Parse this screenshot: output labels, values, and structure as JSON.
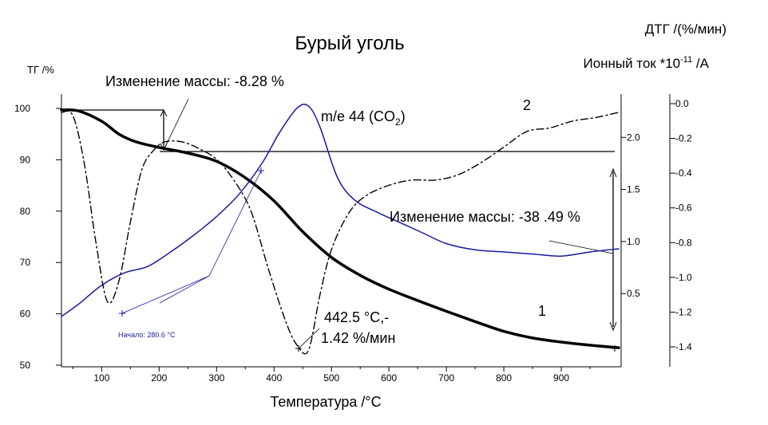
{
  "chart_data": {
    "type": "line",
    "title": "Бурый уголь",
    "xlabel": "Температура /°C",
    "xlim": [
      30,
      1000
    ],
    "x_ticks": [
      "100",
      "200",
      "300",
      "400",
      "500",
      "600",
      "700",
      "800",
      "900"
    ],
    "axes": {
      "tg": {
        "label": "ТГ /%",
        "ylim": [
          50,
          100
        ],
        "ticks": [
          "100",
          "90",
          "80",
          "70",
          "60",
          "50"
        ]
      },
      "ion": {
        "label": "Ионный ток *10",
        "label_sup": "-11",
        "label_tail": " /A",
        "ticks": [
          "2.0",
          "1.5",
          "1.0",
          "0.5"
        ]
      },
      "dtg": {
        "label": "ДТГ /(%/мин)",
        "ticks": [
          "0.0",
          "-0.2",
          "-0.4",
          "-0.6",
          "-0.8",
          "-1.0",
          "-1.2",
          "-1.4"
        ]
      }
    },
    "series": [
      {
        "id": "tg",
        "axis": "tg",
        "color": "#000000",
        "style": "solid-thick",
        "x": [
          30,
          60,
          100,
          130,
          160,
          200,
          250,
          300,
          350,
          400,
          450,
          500,
          550,
          600,
          650,
          700,
          750,
          800,
          850,
          900,
          950,
          1000
        ],
        "y": [
          99.7,
          99.5,
          97.5,
          95.0,
          93.5,
          92.4,
          91.3,
          89.7,
          86.5,
          82.0,
          76.0,
          71.0,
          67.5,
          64.8,
          62.6,
          60.5,
          58.5,
          56.6,
          55.3,
          54.5,
          53.9,
          53.4
        ]
      },
      {
        "id": "ion",
        "axis": "ion",
        "color": "#1a1a9e",
        "style": "solid",
        "x": [
          30,
          60,
          100,
          140,
          180,
          220,
          260,
          300,
          340,
          380,
          410,
          440,
          460,
          480,
          510,
          540,
          580,
          620,
          660,
          700,
          750,
          800,
          850,
          900,
          950,
          1000
        ],
        "y": [
          0.28,
          0.4,
          0.58,
          0.7,
          0.76,
          0.9,
          1.06,
          1.24,
          1.46,
          1.76,
          2.05,
          2.28,
          2.3,
          2.1,
          1.62,
          1.4,
          1.28,
          1.18,
          1.08,
          0.98,
          0.92,
          0.9,
          0.88,
          0.86,
          0.9,
          0.93
        ]
      },
      {
        "id": "dtg",
        "axis": "dtg",
        "color": "#000000",
        "style": "dashdot",
        "x": [
          30,
          50,
          70,
          90,
          110,
          130,
          150,
          170,
          190,
          210,
          240,
          270,
          300,
          330,
          360,
          390,
          420,
          440,
          460,
          480,
          500,
          530,
          560,
          600,
          640,
          680,
          720,
          760,
          800,
          840,
          880,
          920,
          960,
          1000
        ],
        "y": [
          -0.05,
          -0.07,
          -0.35,
          -0.8,
          -1.14,
          -1.02,
          -0.68,
          -0.38,
          -0.27,
          -0.22,
          -0.22,
          -0.26,
          -0.32,
          -0.44,
          -0.62,
          -0.95,
          -1.25,
          -1.39,
          -1.42,
          -1.1,
          -0.84,
          -0.63,
          -0.53,
          -0.47,
          -0.44,
          -0.44,
          -0.41,
          -0.34,
          -0.25,
          -0.16,
          -0.14,
          -0.1,
          -0.08,
          -0.05
        ]
      }
    ],
    "annotations": {
      "mass1": "Изменение массы: -8.28 %",
      "mass2": "Изменение массы: -38 .49 %",
      "co2_prefix": "m/e 44 (CO",
      "co2_sub": "2",
      "co2_suffix": ")",
      "peak_line1": "442.5 °C,-",
      "peak_line2": "1.42 %/мин",
      "onset": "Начало: 280.6 °C",
      "curve1": "1",
      "curve2": "2"
    },
    "grid": false
  }
}
